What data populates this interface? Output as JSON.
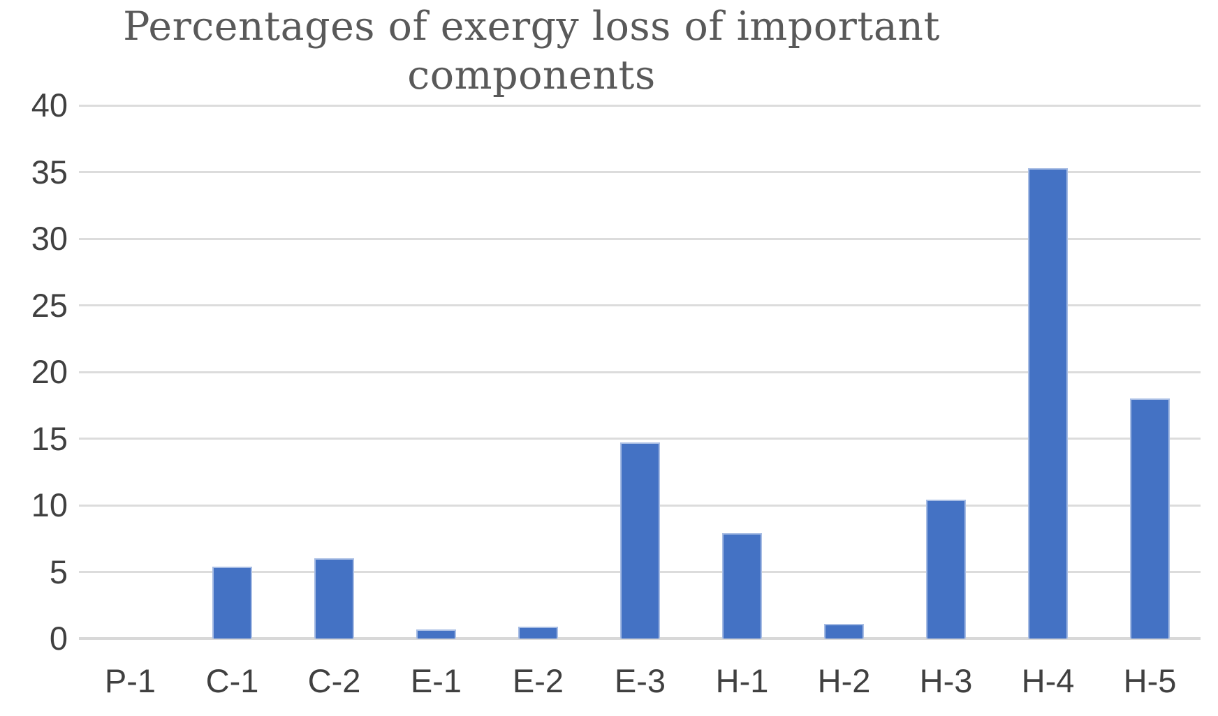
{
  "chart_data": {
    "type": "bar",
    "title": "Percentages of exergy loss of important components",
    "title_lines": [
      "Percentages of exergy loss of important",
      "components"
    ],
    "categories": [
      "P-1",
      "C-1",
      "C-2",
      "E-1",
      "E-2",
      "E-3",
      "H-1",
      "H-2",
      "H-3",
      "H-4",
      "H-5"
    ],
    "values": [
      0,
      5.4,
      6.0,
      0.7,
      0.9,
      14.7,
      7.9,
      1.1,
      10.4,
      35.3,
      18.0
    ],
    "xlabel": "",
    "ylabel": "",
    "ylim": [
      0,
      40
    ],
    "ytick_step": 5,
    "ytick_labels": [
      "0",
      "5",
      "10",
      "15",
      "20",
      "25",
      "30",
      "35",
      "40"
    ],
    "grid": true,
    "legend": false,
    "colors": {
      "bar_fill": "#4472c4",
      "bar_edge": "#a8bde4",
      "gridline": "#dcdcdc",
      "axis_baseline": "#d8d8d8",
      "tick_label": "#404040",
      "title": "#595959"
    }
  }
}
